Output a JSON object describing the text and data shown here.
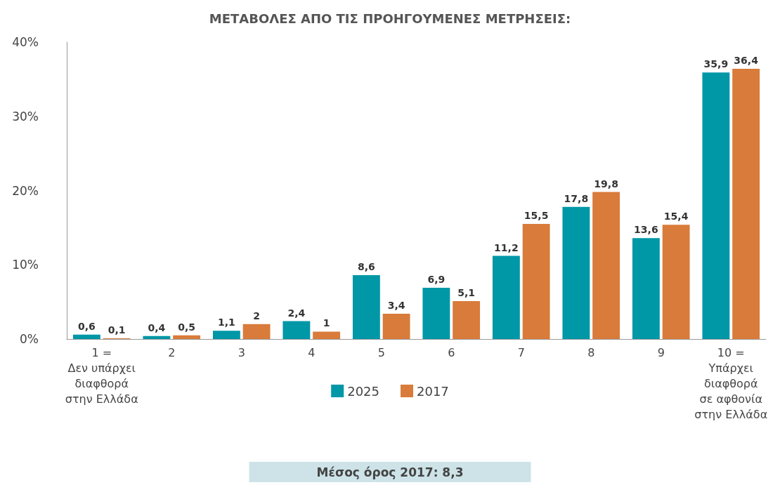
{
  "chart_data": {
    "type": "bar",
    "title": "ΜΕΤΑΒΟΛΕΣ ΑΠΟ ΤΙΣ ΠΡΟΗΓΟΥΜΕΝΕΣ ΜΕΤΡΗΣΕΙΣ:",
    "categories": [
      "1 =\nΔεν υπάρχει\nδιαφθορά\nστην Ελλάδα",
      "2",
      "3",
      "4",
      "5",
      "6",
      "7",
      "8",
      "9",
      "10 =\nΥπάρχει\nδιαφθορά\nσε αφθονία\nστην Ελλάδα"
    ],
    "series": [
      {
        "name": "2025",
        "color": "#0097a7",
        "values": [
          0.6,
          0.4,
          1.1,
          2.4,
          8.6,
          6.9,
          11.2,
          17.8,
          13.6,
          35.9
        ],
        "value_labels": [
          "0,6",
          "0,4",
          "1,1",
          "2,4",
          "8,6",
          "6,9",
          "11,2",
          "17,8",
          "13,6",
          "35,9"
        ]
      },
      {
        "name": "2017",
        "color": "#d97b3a",
        "values": [
          0.1,
          0.5,
          2,
          1,
          3.4,
          5.1,
          15.5,
          19.8,
          15.4,
          36.4
        ],
        "value_labels": [
          "0,1",
          "0,5",
          "2",
          "1",
          "3,4",
          "5,1",
          "15,5",
          "19,8",
          "15,4",
          "36,4"
        ]
      }
    ],
    "ylim": [
      0,
      40
    ],
    "yticks": [
      {
        "value": 0,
        "label": "0%"
      },
      {
        "value": 10,
        "label": "10%"
      },
      {
        "value": 20,
        "label": "20%"
      },
      {
        "value": 30,
        "label": "30%"
      },
      {
        "value": 40,
        "label": "40%"
      }
    ],
    "grid": false,
    "legend": "bottom",
    "annotations": [
      "Μέσος όρος 2017: 8,3"
    ]
  }
}
